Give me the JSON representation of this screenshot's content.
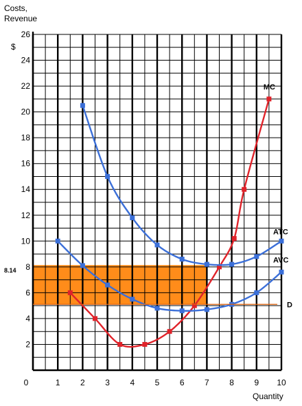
{
  "chart_data": {
    "type": "line",
    "title": "",
    "ylabel": "Costs,\nRevenue",
    "ylabel_lines": [
      "Costs,",
      "Revenue"
    ],
    "xlabel": "Quantity",
    "y_currency_prefix": "$",
    "xlim": [
      0,
      10
    ],
    "ylim": [
      0,
      26
    ],
    "x_ticks": [
      0,
      1,
      2,
      3,
      4,
      5,
      6,
      7,
      8,
      9,
      10
    ],
    "y_ticks": [
      2,
      4,
      6,
      8,
      10,
      12,
      14,
      16,
      18,
      20,
      22,
      24,
      26
    ],
    "grid": true,
    "highlight_price_label": "8.14",
    "shaded_rectangle": {
      "x": [
        0,
        7
      ],
      "y": [
        5.1,
        8.14
      ],
      "color": "#ff8c1a"
    },
    "series": [
      {
        "name": "MC",
        "color": "#e0232a",
        "x": [
          1.5,
          2.5,
          3.5,
          4.5,
          5.5,
          6.5,
          7.5,
          8.1,
          8.5,
          9.5
        ],
        "y": [
          6,
          4,
          2,
          2,
          3,
          5,
          8,
          10.2,
          14,
          21
        ]
      },
      {
        "name": "ATC",
        "color": "#3b6fd8",
        "x": [
          2,
          3,
          4,
          5,
          6,
          7,
          8,
          9,
          10
        ],
        "y": [
          20.5,
          15,
          11.8,
          9.7,
          8.6,
          8.2,
          8.2,
          8.8,
          10
        ]
      },
      {
        "name": "AVC",
        "color": "#3b6fd8",
        "x": [
          1,
          2,
          3,
          4,
          5,
          6,
          7,
          8,
          9,
          10
        ],
        "y": [
          10,
          8.1,
          6.6,
          5.5,
          4.8,
          4.6,
          4.7,
          5.1,
          6,
          7.6
        ]
      },
      {
        "name": "D",
        "color": "#e0600a",
        "x": [
          0,
          10
        ],
        "y": [
          5.1,
          5.1
        ]
      }
    ]
  }
}
